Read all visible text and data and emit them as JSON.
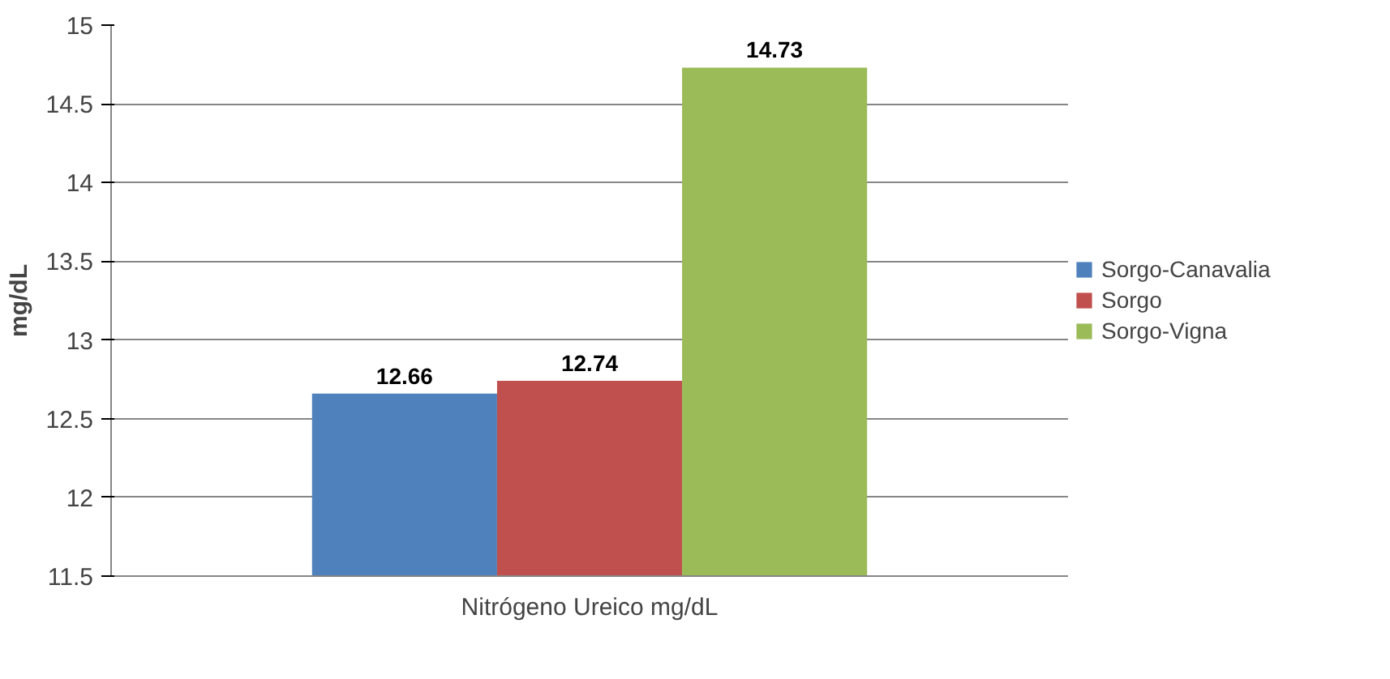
{
  "chart_data": {
    "type": "bar",
    "ylabel": "mg/dL",
    "categories": [
      "Nitrógeno Ureico mg/dL"
    ],
    "series": [
      {
        "name": "Sorgo-Canavalia",
        "color": "#4f81bd",
        "values": [
          12.66
        ]
      },
      {
        "name": "Sorgo",
        "color": "#c0504d",
        "values": [
          12.74
        ]
      },
      {
        "name": "Sorgo-Vigna",
        "color": "#9bbb59",
        "values": [
          14.73
        ]
      }
    ],
    "ylim": [
      11.5,
      15
    ],
    "yticks": [
      11.5,
      12,
      12.5,
      13,
      13.5,
      14,
      14.5,
      15
    ],
    "grid": "y",
    "legend": "right",
    "data_labels": true
  }
}
